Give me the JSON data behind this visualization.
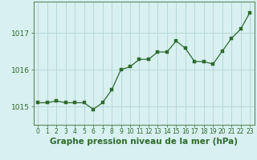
{
  "x": [
    0,
    1,
    2,
    3,
    4,
    5,
    6,
    7,
    8,
    9,
    10,
    11,
    12,
    13,
    14,
    15,
    16,
    17,
    18,
    19,
    20,
    21,
    22,
    23
  ],
  "y": [
    1015.1,
    1015.1,
    1015.15,
    1015.1,
    1015.1,
    1015.1,
    1014.92,
    1015.1,
    1015.45,
    1016.0,
    1016.08,
    1016.28,
    1016.28,
    1016.48,
    1016.48,
    1016.78,
    1016.58,
    1016.22,
    1016.22,
    1016.15,
    1016.5,
    1016.85,
    1017.1,
    1017.55
  ],
  "line_color": "#2d6a2d",
  "marker": "s",
  "marker_size": 2.5,
  "background_color": "#d8f0f0",
  "grid_color": "#b8d8d8",
  "xlabel": "Graphe pression niveau de la mer (hPa)",
  "xlabel_fontsize": 7.5,
  "ylabel_ticks": [
    1015,
    1016,
    1017
  ],
  "ylim": [
    1014.5,
    1017.85
  ],
  "xlim": [
    -0.5,
    23.5
  ],
  "tick_color": "#2d6a2d",
  "axis_color": "#5a8a5a",
  "tick_fontsize": 6.5,
  "xtick_fontsize": 5.5
}
